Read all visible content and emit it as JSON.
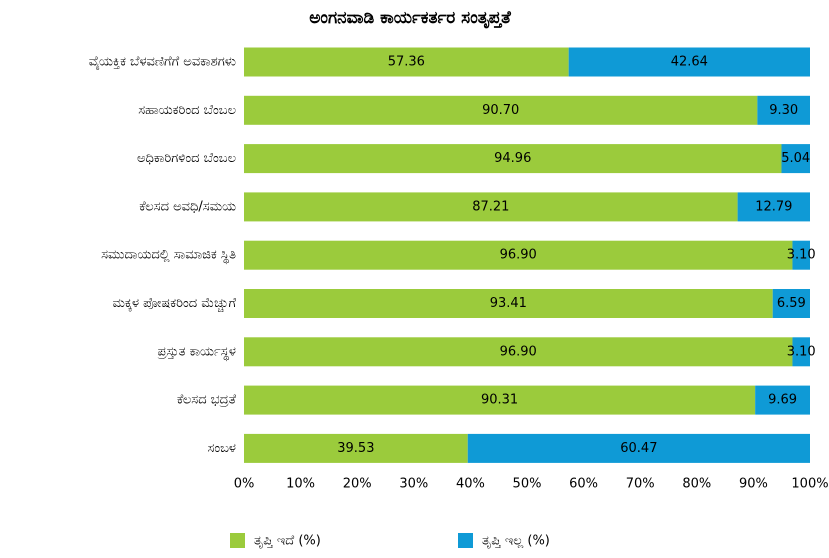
{
  "chart_data": {
    "type": "stacked-bar-horizontal",
    "title": "ಅಂಗನವಾಡಿ ಕಾರ್ಯಕರ್ತರ ಸಂತೃಪ್ತತೆ",
    "categories": [
      "ವೈಯಕ್ತಿಕ ಬೆಳವಣಿಗೆಗೆ ಅವಕಾಶಗಳು",
      "ಸಹಾಯಕರಿಂದ ಬೆಂಬಲ",
      "ಅಧಿಕಾರಿಗಳಿಂದ ಬೆಂಬಲ",
      "ಕೆಲಸದ ಅವಧಿ/ಸಮಯ",
      "ಸಮುದಾಯದಲ್ಲಿ ಸಾಮಾಜಿಕ ಸ್ಥಿತಿ",
      "ಮಕ್ಕಳ ಪೋಷಕರಿಂದ ಮೆಚ್ಚುಗೆ",
      "ಪ್ರಸ್ತುತ ಕಾರ್ಯಸ್ಥಳ",
      "ಕೆಲಸದ ಭದ್ರತೆ",
      "ಸಂಬಳ"
    ],
    "series": [
      {
        "name": "ತೃಪ್ತಿ ಇದೆ (%)",
        "color": "#9bcb3c",
        "values": [
          57.36,
          90.7,
          94.96,
          87.21,
          96.9,
          93.41,
          96.9,
          90.31,
          39.53
        ],
        "value_labels": [
          "57.36",
          "90.70",
          "94.96",
          "87.21",
          "96.90",
          "93.41",
          "96.90",
          "90.31",
          "39.53"
        ]
      },
      {
        "name": "ತೃಪ್ತಿ ಇಲ್ಲ (%)",
        "color": "#0f9ad6",
        "values": [
          42.64,
          9.3,
          5.04,
          12.79,
          3.1,
          6.59,
          3.1,
          9.69,
          60.47
        ],
        "value_labels": [
          "42.64",
          "9.30",
          "5.04",
          "12.79",
          "3.10",
          "6.59",
          "3.10",
          "9.69",
          "60.47"
        ]
      }
    ],
    "xlim": [
      0,
      100
    ],
    "xticks": [
      {
        "value": 0,
        "label": "0%"
      },
      {
        "value": 10,
        "label": "10%"
      },
      {
        "value": 20,
        "label": "20%"
      },
      {
        "value": 30,
        "label": "30%"
      },
      {
        "value": 40,
        "label": "40%"
      },
      {
        "value": 50,
        "label": "50%"
      },
      {
        "value": 60,
        "label": "60%"
      },
      {
        "value": 70,
        "label": "70%"
      },
      {
        "value": 80,
        "label": "80%"
      },
      {
        "value": 90,
        "label": "90%"
      },
      {
        "value": 100,
        "label": "100%"
      }
    ],
    "legend": "bottom"
  }
}
